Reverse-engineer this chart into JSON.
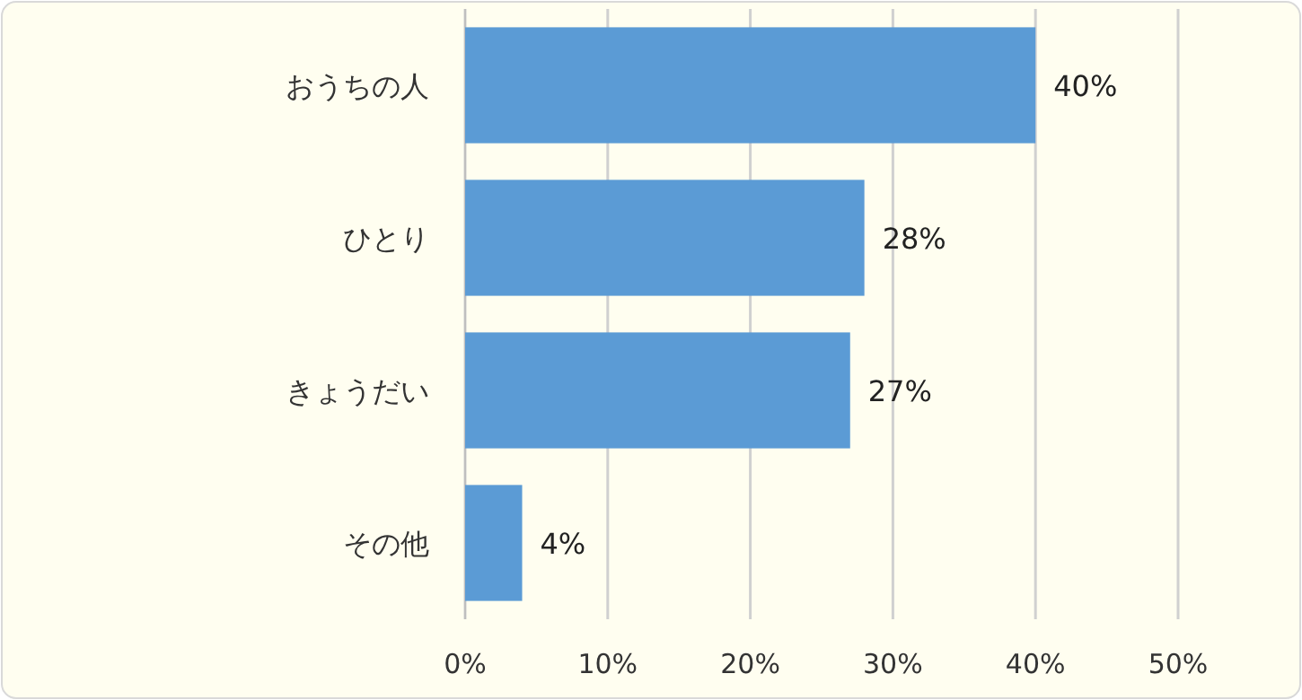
{
  "chart_data": {
    "type": "bar",
    "orientation": "horizontal",
    "categories": [
      "おうちの人",
      "ひとり",
      "きょうだい",
      "その他"
    ],
    "values": [
      40,
      28,
      27,
      4
    ],
    "value_labels": [
      "40%",
      "28%",
      "27%",
      "4%"
    ],
    "color": "#5b9bd5",
    "xlim": [
      0,
      50
    ],
    "xticks": [
      {
        "value": 0,
        "label": "0%"
      },
      {
        "value": 10,
        "label": "10%"
      },
      {
        "value": 20,
        "label": "20%"
      },
      {
        "value": 30,
        "label": "30%"
      },
      {
        "value": 40,
        "label": "40%"
      },
      {
        "value": 50,
        "label": "50%"
      }
    ],
    "grid": "x"
  }
}
